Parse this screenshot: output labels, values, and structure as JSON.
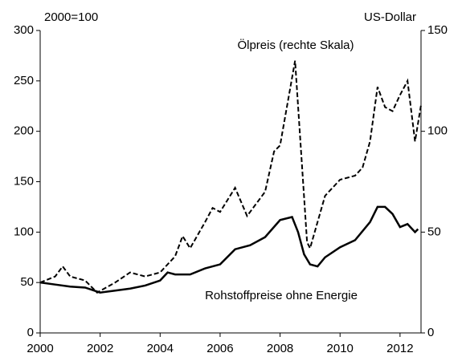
{
  "chart_data": {
    "type": "line",
    "left_unit": "2000=100",
    "right_unit": "US-Dollar",
    "xlim": [
      2000,
      2012.7
    ],
    "xticks": [
      2000,
      2002,
      2004,
      2006,
      2008,
      2010,
      2012
    ],
    "ylim": [
      0,
      300
    ],
    "yticks": [
      0,
      50,
      100,
      150,
      200,
      250,
      300
    ],
    "y2lim": [
      0,
      150
    ],
    "y2ticks": [
      0,
      50,
      100,
      150
    ],
    "series": [
      {
        "name": "Rohstoffpreise ohne Energie",
        "color": "#000000",
        "dash": false,
        "x": [
          2000,
          2000.5,
          2001,
          2001.5,
          2002,
          2002.5,
          2003,
          2003.5,
          2004,
          2004.25,
          2004.5,
          2005,
          2005.5,
          2006,
          2006.5,
          2007,
          2007.5,
          2008,
          2008.4,
          2008.6,
          2008.8,
          2009,
          2009.25,
          2009.5,
          2010,
          2010.5,
          2011,
          2011.25,
          2011.5,
          2011.75,
          2012,
          2012.25,
          2012.5,
          2012.6
        ],
        "values": [
          50,
          48,
          46,
          45,
          40,
          42,
          44,
          47,
          52,
          60,
          58,
          58,
          64,
          68,
          83,
          87,
          95,
          112,
          115,
          100,
          78,
          68,
          66,
          75,
          85,
          92,
          110,
          125,
          125,
          118,
          105,
          108,
          100,
          103
        ]
      },
      {
        "name": "Ölpreis (rechte Skala)",
        "color": "#000000",
        "dash": true,
        "axis": "y2",
        "x": [
          2000,
          2000.5,
          2000.75,
          2001,
          2001.5,
          2001.9,
          2002.5,
          2003,
          2003.5,
          2004,
          2004.5,
          2004.75,
          2005,
          2005.5,
          2005.75,
          2006,
          2006.5,
          2006.9,
          2007.5,
          2007.8,
          2008,
          2008.5,
          2008.9,
          2009,
          2009.5,
          2010,
          2010.5,
          2010.75,
          2011,
          2011.25,
          2011.5,
          2011.75,
          2012,
          2012.25,
          2012.5,
          2012.7
        ],
        "values": [
          25,
          28,
          33,
          28,
          26,
          20,
          25,
          30,
          28,
          30,
          38,
          48,
          42,
          55,
          62,
          60,
          72,
          58,
          70,
          90,
          93,
          135,
          45,
          42,
          68,
          76,
          78,
          82,
          95,
          122,
          112,
          110,
          118,
          125,
          95,
          113
        ]
      }
    ]
  }
}
